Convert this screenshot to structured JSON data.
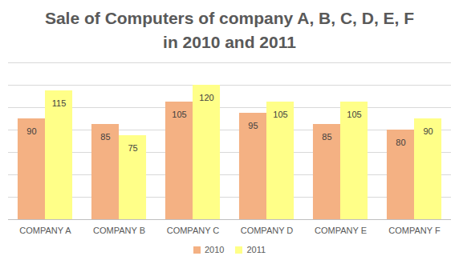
{
  "chart_data": {
    "type": "bar",
    "title": "Sale of Computers of company A, B, C, D, E, F\nin 2010 and 2011",
    "categories": [
      "COMPANY A",
      "COMPANY B",
      "COMPANY C",
      "COMPANY D",
      "COMPANY E",
      "COMPANY F"
    ],
    "series": [
      {
        "name": "2010",
        "color": "#f4b183",
        "values": [
          90,
          85,
          105,
          95,
          85,
          80
        ]
      },
      {
        "name": "2011",
        "color": "#ffff88",
        "values": [
          115,
          75,
          120,
          105,
          105,
          90
        ]
      }
    ],
    "ylim": [
      0,
      140
    ],
    "yticks": [
      0,
      20,
      40,
      60,
      80,
      100,
      120,
      140
    ],
    "grid": true,
    "legend": "bottom",
    "data_labels": true,
    "tick_labels": "x"
  }
}
